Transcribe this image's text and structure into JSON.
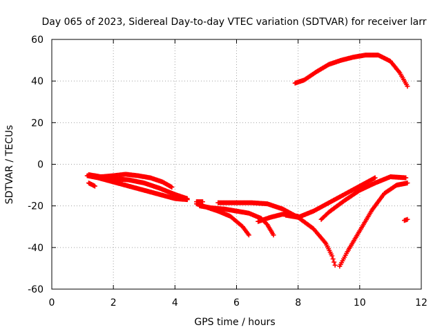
{
  "chart_data": {
    "type": "scatter",
    "title": "Day 065 of 2023, Sidereal Day-to-day VTEC variation (SDTVAR) for receiver larr",
    "xlabel": "GPS time / hours",
    "ylabel": "SDTVAR / TECUs",
    "xlim": [
      0,
      12
    ],
    "ylim": [
      -60,
      60
    ],
    "xticks": [
      0,
      2,
      4,
      6,
      8,
      10,
      12
    ],
    "yticks": [
      -60,
      -40,
      -20,
      0,
      20,
      40,
      60
    ],
    "xtick_labels": [
      "0",
      "2",
      "4",
      "6",
      "8",
      "10",
      "12"
    ],
    "ytick_labels": [
      "-60",
      "-40",
      "-20",
      "0",
      "20",
      "40",
      "60"
    ],
    "grid": true,
    "marker": "plus",
    "color": "#ff0000",
    "series": [
      {
        "x": [
          1.15,
          1.5,
          2.0,
          2.5,
          3.0,
          3.5,
          4.0,
          4.4
        ],
        "y": [
          -5.5,
          -6.5,
          -8.5,
          -10.5,
          -12.5,
          -14.5,
          -16.5,
          -17.0
        ]
      },
      {
        "x": [
          1.2,
          1.6,
          2.0,
          2.4,
          2.8,
          3.2,
          3.6,
          3.9
        ],
        "y": [
          -5.0,
          -6.0,
          -5.5,
          -4.8,
          -5.5,
          -6.5,
          -8.5,
          -11.0
        ]
      },
      {
        "x": [
          1.2,
          1.4
        ],
        "y": [
          -9.0,
          -10.5
        ]
      },
      {
        "x": [
          1.6,
          2.0,
          2.5,
          3.0,
          3.5,
          4.0,
          4.4
        ],
        "y": [
          -6.5,
          -7.0,
          -7.5,
          -9.0,
          -11.5,
          -14.5,
          -16.5
        ]
      },
      {
        "x": [
          4.7,
          4.9
        ],
        "y": [
          -18.0,
          -18.0
        ]
      },
      {
        "x": [
          4.7,
          5.0,
          5.4,
          5.8,
          6.2,
          6.4
        ],
        "y": [
          -19.0,
          -20.5,
          -22.5,
          -25.0,
          -30.0,
          -34.0
        ]
      },
      {
        "x": [
          4.8,
          5.2,
          5.6,
          6.0,
          6.4,
          6.8,
          7.0,
          7.2
        ],
        "y": [
          -20.0,
          -21.0,
          -21.5,
          -22.5,
          -23.5,
          -26.0,
          -29.0,
          -34.0
        ]
      },
      {
        "x": [
          5.4,
          6.0,
          6.5,
          7.0,
          7.5,
          8.0,
          8.5,
          8.9,
          9.1,
          9.2
        ],
        "y": [
          -18.5,
          -18.5,
          -18.5,
          -19.0,
          -21.5,
          -25.5,
          -31.0,
          -38.0,
          -44.0,
          -48.5
        ]
      },
      {
        "x": [
          6.7,
          7.1,
          7.5,
          8.0
        ],
        "y": [
          -27.5,
          -25.5,
          -24.0,
          -25.0
        ]
      },
      {
        "x": [
          7.6,
          8.0,
          8.5,
          9.0,
          9.5,
          10.0,
          10.5
        ],
        "y": [
          -24.5,
          -25.5,
          -22.5,
          -18.5,
          -14.5,
          -10.5,
          -6.5
        ]
      },
      {
        "x": [
          9.35,
          9.6,
          10.0,
          10.4,
          10.8,
          11.2,
          11.55
        ],
        "y": [
          -49.0,
          -42.0,
          -32.0,
          -22.0,
          -14.0,
          -10.0,
          -9.0
        ]
      },
      {
        "x": [
          8.75,
          9.0,
          9.5,
          10.0,
          10.5,
          11.0,
          11.5
        ],
        "y": [
          -26.5,
          -23.0,
          -17.5,
          -12.5,
          -9.0,
          -6.0,
          -6.5
        ]
      },
      {
        "x": [
          11.45,
          11.55
        ],
        "y": [
          -27.0,
          -26.5
        ]
      },
      {
        "x": [
          7.9,
          8.2,
          8.6,
          9.0,
          9.4,
          9.8,
          10.2,
          10.6,
          11.0,
          11.3,
          11.55
        ],
        "y": [
          39.0,
          40.5,
          44.5,
          48.0,
          50.0,
          51.5,
          52.5,
          52.5,
          49.5,
          44.0,
          37.5
        ]
      }
    ]
  }
}
